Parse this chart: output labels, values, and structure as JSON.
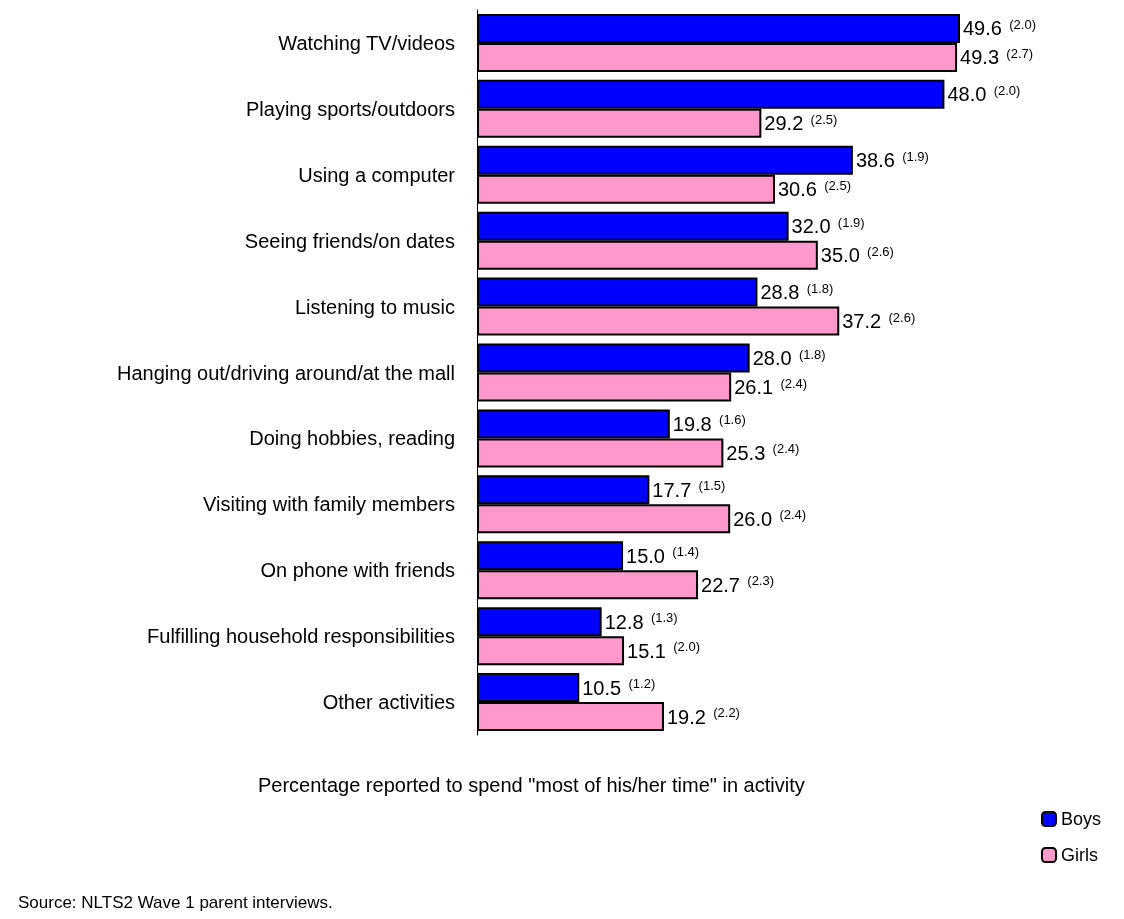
{
  "chart_data": {
    "type": "bar",
    "orientation": "horizontal",
    "xlabel": "Percentage reported to spend \"most of his/her time\" in activity",
    "annotations": [
      "Source: NLTS2 Wave 1 parent interviews."
    ],
    "categories": [
      "Watching TV/videos",
      "Playing sports/outdoors",
      "Using a computer",
      "Seeing friends/on dates",
      "Listening to music",
      "Hanging out/driving around/at the mall",
      "Doing hobbies, reading",
      "Visiting with family members",
      "On phone with friends",
      "Fulfilling household responsibilities",
      "Other activities"
    ],
    "series": [
      {
        "name": "Boys",
        "color": "#0000ff",
        "values": [
          49.6,
          48.0,
          38.6,
          32.0,
          28.8,
          28.0,
          19.8,
          17.7,
          15.0,
          12.8,
          10.5
        ],
        "value_labels": [
          "49.6 (2.0)",
          "48.0 (2.0)",
          "38.6 (1.9)",
          "32.0 (1.9)",
          "28.8 (1.8)",
          "28.0 (1.8)",
          "19.8 (1.6)",
          "17.7 (1.5)",
          "15.0 (1.4)",
          "12.8 (1.3)",
          "10.5 (1.2)"
        ]
      },
      {
        "name": "Girls",
        "color": "#ff99cc",
        "values": [
          49.3,
          29.2,
          30.6,
          35.0,
          37.2,
          26.1,
          25.3,
          26.0,
          22.7,
          15.1,
          19.2
        ],
        "value_labels": [
          "49.3 (2.7)",
          "29.2 (2.5)",
          "30.6 (2.5)",
          "35.0 (2.6)",
          "37.2 (2.6)",
          "26.1 (2.4)",
          "25.3 (2.4)",
          "26.0 (2.4)",
          "22.7 (2.3)",
          "15.1 (2.0)",
          "19.2 (2.2)"
        ]
      }
    ],
    "legend": "bottom right",
    "grid": false
  }
}
